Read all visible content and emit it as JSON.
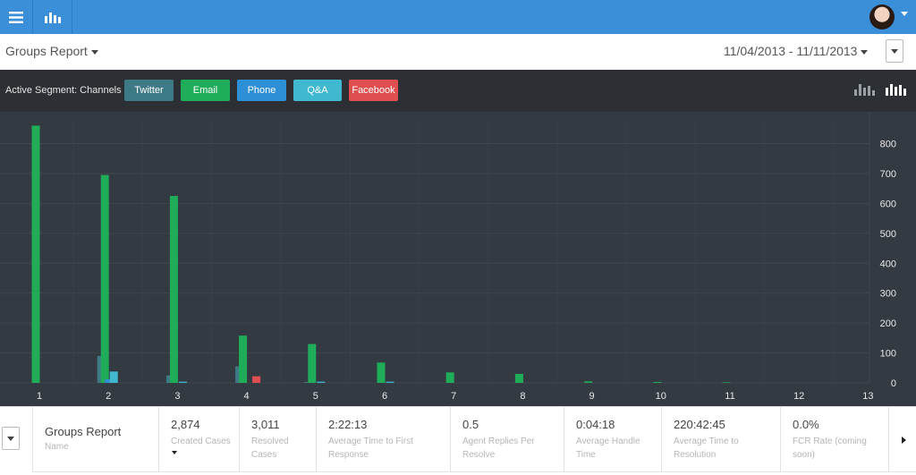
{
  "topbar": {
    "menu_icon": "hamburger-icon",
    "reports_icon": "bar-chart-icon",
    "avatar": "user-avatar"
  },
  "header": {
    "title": "Groups Report",
    "date_range": "11/04/2013 - 11/11/2013"
  },
  "segment": {
    "label": "Active Segment: Channels",
    "chips": [
      {
        "label": "Twitter",
        "color": "#3d7a86"
      },
      {
        "label": "Email",
        "color": "#1fad5a"
      },
      {
        "label": "Phone",
        "color": "#2d8fd6"
      },
      {
        "label": "Q&A",
        "color": "#3fb8d0"
      },
      {
        "label": "Facebook",
        "color": "#e04f4f"
      }
    ],
    "view_icons": [
      "stacked-bars-icon",
      "grouped-bars-icon"
    ]
  },
  "chart_data": {
    "type": "bar",
    "categories": [
      "1",
      "2",
      "3",
      "4",
      "5",
      "6",
      "7",
      "8",
      "9",
      "10",
      "11",
      "12",
      "13"
    ],
    "series": [
      {
        "name": "Twitter",
        "color": "#3d7a86",
        "values": [
          0,
          90,
          25,
          55,
          3,
          0,
          0,
          0,
          0,
          0,
          0,
          0,
          0
        ]
      },
      {
        "name": "Email",
        "color": "#1fad5a",
        "values": [
          860,
          695,
          625,
          158,
          130,
          68,
          35,
          30,
          5,
          3,
          2,
          0,
          0
        ]
      },
      {
        "name": "Phone",
        "color": "#2d8fd6",
        "values": [
          0,
          12,
          0,
          0,
          0,
          0,
          0,
          0,
          0,
          0,
          0,
          0,
          0
        ]
      },
      {
        "name": "Q&A",
        "color": "#3fb8d0",
        "values": [
          0,
          38,
          4,
          0,
          4,
          4,
          0,
          0,
          0,
          0,
          0,
          0,
          0
        ]
      },
      {
        "name": "Facebook",
        "color": "#e04f4f",
        "values": [
          0,
          0,
          0,
          22,
          0,
          0,
          0,
          0,
          0,
          0,
          0,
          0,
          0
        ]
      }
    ],
    "yticks": [
      "0",
      "100",
      "200",
      "300",
      "400",
      "500",
      "600",
      "700",
      "800"
    ],
    "ylim": [
      0,
      870
    ],
    "grid": true,
    "title": "",
    "xlabel": "",
    "ylabel": ""
  },
  "table": {
    "name": {
      "value": "Groups Report",
      "label": "Name"
    },
    "columns": [
      {
        "value": "2,874",
        "label": "Created Cases"
      },
      {
        "value": "3,011",
        "label": "Resolved Cases"
      },
      {
        "value": "2:22:13",
        "label": "Average Time to First Response"
      },
      {
        "value": "0.5",
        "label": "Agent Replies Per Resolve"
      },
      {
        "value": "0:04:18",
        "label": "Average Handle Time"
      },
      {
        "value": "220:42:45",
        "label": "Average Time to Resolution"
      },
      {
        "value": "0.0%",
        "label": "FCR Rate (coming soon)"
      }
    ]
  }
}
